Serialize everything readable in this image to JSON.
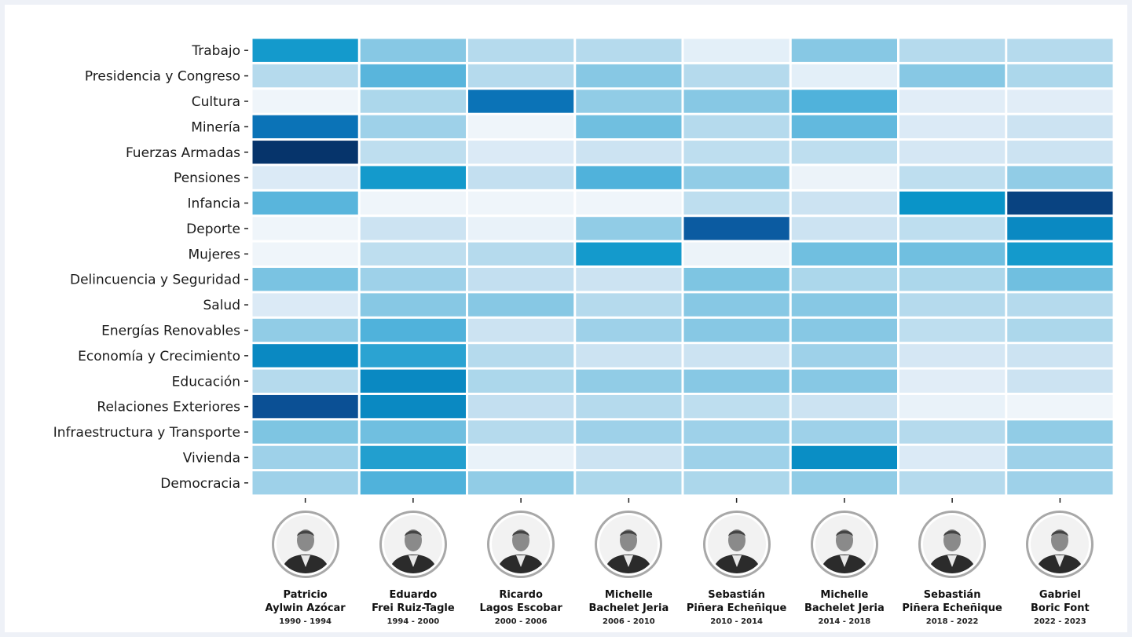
{
  "chart_data": {
    "type": "heatmap",
    "rows": [
      "Trabajo",
      "Presidencia y Congreso",
      "Cultura",
      "Minería",
      "Fuerzas Armadas",
      "Pensiones",
      "Infancia",
      "Deporte",
      "Mujeres",
      "Delincuencia y Seguridad",
      "Salud",
      "Energías Renovables",
      "Economía y Crecimiento",
      "Educación",
      "Relaciones Exteriores",
      "Infraestructura y Transporte",
      "Vivienda",
      "Democracia"
    ],
    "columns": [
      {
        "name_line1": "Patricio",
        "name_line2": "Aylwin Azócar",
        "years": "1990 - 1994"
      },
      {
        "name_line1": "Eduardo",
        "name_line2": "Frei Ruiz-Tagle",
        "years": "1994 - 2000"
      },
      {
        "name_line1": "Ricardo",
        "name_line2": "Lagos Escobar",
        "years": "2000 - 2006"
      },
      {
        "name_line1": "Michelle",
        "name_line2": "Bachelet Jeria",
        "years": "2006 - 2010"
      },
      {
        "name_line1": "Sebastián",
        "name_line2": "Piñera Echeñique",
        "years": "2010 - 2014"
      },
      {
        "name_line1": "Michelle",
        "name_line2": "Bachelet Jeria",
        "years": "2014 - 2018"
      },
      {
        "name_line1": "Sebastián",
        "name_line2": "Piñera Echeñique",
        "years": "2018 - 2022"
      },
      {
        "name_line1": "Gabriel",
        "name_line2": "Boric Font",
        "years": "2022 - 2023"
      }
    ],
    "values": [
      [
        0.55,
        0.3,
        0.2,
        0.2,
        0.07,
        0.3,
        0.2,
        0.2
      ],
      [
        0.2,
        0.4,
        0.2,
        0.3,
        0.2,
        0.07,
        0.3,
        0.22
      ],
      [
        0.03,
        0.22,
        0.7,
        0.28,
        0.3,
        0.42,
        0.08,
        0.08
      ],
      [
        0.7,
        0.25,
        0.03,
        0.35,
        0.2,
        0.38,
        0.1,
        0.15
      ],
      [
        1.0,
        0.18,
        0.1,
        0.15,
        0.18,
        0.18,
        0.12,
        0.15
      ],
      [
        0.1,
        0.55,
        0.17,
        0.42,
        0.28,
        0.04,
        0.18,
        0.28
      ],
      [
        0.4,
        0.03,
        0.03,
        0.03,
        0.18,
        0.15,
        0.58,
        0.92
      ],
      [
        0.03,
        0.15,
        0.05,
        0.28,
        0.8,
        0.15,
        0.18,
        0.62
      ],
      [
        0.03,
        0.18,
        0.2,
        0.55,
        0.04,
        0.35,
        0.35,
        0.55
      ],
      [
        0.33,
        0.25,
        0.17,
        0.15,
        0.32,
        0.22,
        0.22,
        0.35
      ],
      [
        0.1,
        0.3,
        0.3,
        0.2,
        0.3,
        0.3,
        0.2,
        0.2
      ],
      [
        0.28,
        0.42,
        0.15,
        0.25,
        0.3,
        0.3,
        0.18,
        0.22
      ],
      [
        0.62,
        0.5,
        0.2,
        0.15,
        0.15,
        0.25,
        0.12,
        0.15
      ],
      [
        0.2,
        0.62,
        0.22,
        0.28,
        0.3,
        0.3,
        0.08,
        0.15
      ],
      [
        0.85,
        0.62,
        0.17,
        0.2,
        0.18,
        0.15,
        0.05,
        0.03
      ],
      [
        0.32,
        0.35,
        0.2,
        0.25,
        0.25,
        0.25,
        0.2,
        0.28
      ],
      [
        0.25,
        0.52,
        0.05,
        0.15,
        0.25,
        0.6,
        0.1,
        0.25
      ],
      [
        0.25,
        0.42,
        0.28,
        0.22,
        0.22,
        0.28,
        0.2,
        0.25
      ]
    ],
    "value_range": [
      0,
      1
    ],
    "colormap": [
      "#f7f9fc",
      "#cfe4f3",
      "#8ecbe5",
      "#4cb0da",
      "#0a96c9",
      "#0b6fb5",
      "#0b4e93",
      "#06346b"
    ],
    "grid": true,
    "legend": "none"
  }
}
